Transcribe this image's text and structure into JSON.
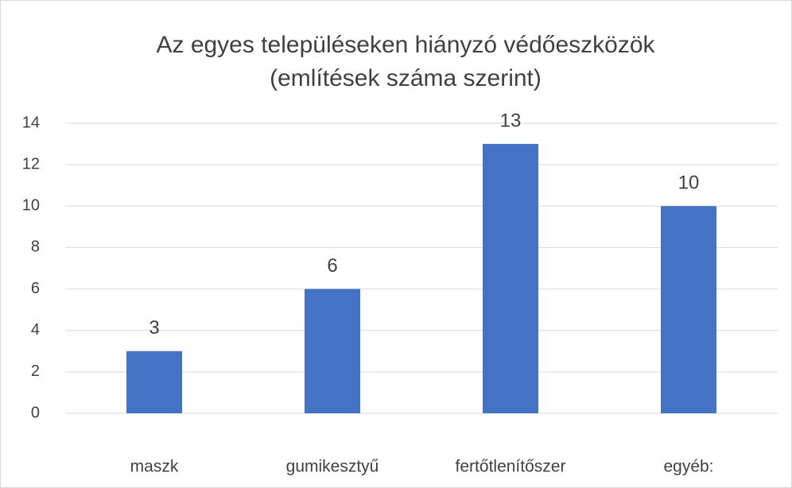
{
  "chart_data": {
    "type": "bar",
    "title": [
      "Az egyes településeken hiányzó védőeszközök",
      "(említések száma szerint)"
    ],
    "categories": [
      "maszk",
      "gumikesztyű",
      "fertőtlenítőszer",
      "egyéb:"
    ],
    "values": [
      3,
      6,
      13,
      10
    ],
    "color": "#4472c4",
    "ylim": [
      0,
      14
    ],
    "yticks": [
      0,
      2,
      4,
      6,
      8,
      10,
      12,
      14
    ],
    "grid": true,
    "data_labels": true
  }
}
